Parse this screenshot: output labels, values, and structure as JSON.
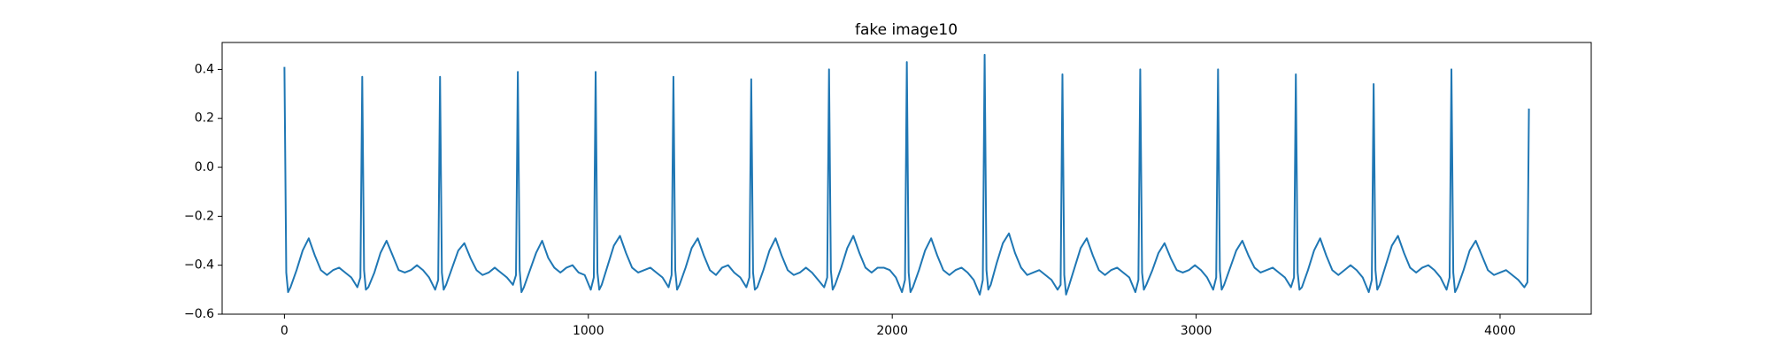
{
  "chart_data": {
    "type": "line",
    "title": "fake image10",
    "x": [
      0,
      6,
      12,
      20,
      40,
      60,
      80,
      100,
      120,
      140,
      160,
      180,
      200,
      220,
      240,
      250,
      256,
      262,
      268,
      276,
      296,
      316,
      336,
      356,
      376,
      396,
      416,
      436,
      456,
      476,
      496,
      506,
      512,
      518,
      524,
      532,
      552,
      572,
      592,
      612,
      632,
      652,
      672,
      692,
      712,
      732,
      752,
      762,
      768,
      774,
      780,
      788,
      808,
      828,
      848,
      868,
      888,
      908,
      928,
      948,
      968,
      988,
      1008,
      1018,
      1024,
      1030,
      1036,
      1044,
      1064,
      1084,
      1104,
      1124,
      1144,
      1164,
      1184,
      1204,
      1224,
      1244,
      1264,
      1274,
      1280,
      1286,
      1292,
      1300,
      1320,
      1340,
      1360,
      1380,
      1400,
      1420,
      1440,
      1460,
      1480,
      1500,
      1520,
      1530,
      1536,
      1542,
      1548,
      1556,
      1576,
      1596,
      1616,
      1636,
      1656,
      1676,
      1696,
      1716,
      1736,
      1756,
      1776,
      1786,
      1792,
      1798,
      1804,
      1812,
      1832,
      1852,
      1872,
      1892,
      1912,
      1932,
      1952,
      1972,
      1992,
      2012,
      2032,
      2042,
      2048,
      2054,
      2060,
      2068,
      2088,
      2108,
      2128,
      2148,
      2168,
      2188,
      2208,
      2228,
      2248,
      2268,
      2288,
      2298,
      2304,
      2310,
      2316,
      2324,
      2344,
      2364,
      2384,
      2404,
      2424,
      2444,
      2464,
      2484,
      2504,
      2524,
      2544,
      2554,
      2560,
      2566,
      2572,
      2580,
      2600,
      2620,
      2640,
      2660,
      2680,
      2700,
      2720,
      2740,
      2760,
      2780,
      2800,
      2810,
      2816,
      2822,
      2828,
      2836,
      2856,
      2876,
      2896,
      2916,
      2936,
      2956,
      2976,
      2996,
      3016,
      3036,
      3056,
      3066,
      3072,
      3078,
      3084,
      3092,
      3112,
      3132,
      3152,
      3172,
      3192,
      3212,
      3232,
      3252,
      3272,
      3292,
      3312,
      3322,
      3328,
      3334,
      3340,
      3348,
      3368,
      3388,
      3408,
      3428,
      3448,
      3468,
      3488,
      3508,
      3528,
      3548,
      3568,
      3578,
      3584,
      3590,
      3596,
      3604,
      3624,
      3644,
      3664,
      3684,
      3704,
      3724,
      3744,
      3764,
      3784,
      3804,
      3824,
      3834,
      3840,
      3846,
      3852,
      3860,
      3880,
      3900,
      3920,
      3940,
      3960,
      3980,
      4000,
      4020,
      4040,
      4060,
      4080,
      4090,
      4095
    ],
    "series": [
      {
        "color": "#1f77b4",
        "values": [
          0.41,
          -0.43,
          -0.51,
          -0.49,
          -0.42,
          -0.34,
          -0.29,
          -0.36,
          -0.42,
          -0.44,
          -0.42,
          -0.41,
          -0.43,
          -0.45,
          -0.49,
          -0.45,
          0.37,
          -0.42,
          -0.5,
          -0.49,
          -0.43,
          -0.35,
          -0.3,
          -0.36,
          -0.42,
          -0.43,
          -0.42,
          -0.4,
          -0.42,
          -0.45,
          -0.5,
          -0.46,
          0.37,
          -0.43,
          -0.5,
          -0.48,
          -0.41,
          -0.34,
          -0.31,
          -0.37,
          -0.42,
          -0.44,
          -0.43,
          -0.41,
          -0.43,
          -0.45,
          -0.48,
          -0.44,
          0.39,
          -0.42,
          -0.51,
          -0.49,
          -0.42,
          -0.35,
          -0.3,
          -0.37,
          -0.41,
          -0.43,
          -0.41,
          -0.4,
          -0.43,
          -0.44,
          -0.5,
          -0.45,
          0.39,
          -0.43,
          -0.5,
          -0.48,
          -0.4,
          -0.32,
          -0.28,
          -0.35,
          -0.41,
          -0.43,
          -0.42,
          -0.41,
          -0.43,
          -0.45,
          -0.49,
          -0.44,
          0.37,
          -0.42,
          -0.5,
          -0.48,
          -0.41,
          -0.33,
          -0.29,
          -0.36,
          -0.42,
          -0.44,
          -0.41,
          -0.4,
          -0.43,
          -0.45,
          -0.49,
          -0.45,
          0.36,
          -0.43,
          -0.5,
          -0.49,
          -0.42,
          -0.34,
          -0.29,
          -0.36,
          -0.42,
          -0.44,
          -0.43,
          -0.41,
          -0.43,
          -0.46,
          -0.49,
          -0.45,
          0.4,
          -0.42,
          -0.5,
          -0.48,
          -0.41,
          -0.33,
          -0.28,
          -0.35,
          -0.41,
          -0.43,
          -0.41,
          -0.41,
          -0.42,
          -0.45,
          -0.51,
          -0.46,
          0.43,
          -0.43,
          -0.51,
          -0.49,
          -0.42,
          -0.34,
          -0.29,
          -0.36,
          -0.42,
          -0.44,
          -0.42,
          -0.41,
          -0.43,
          -0.46,
          -0.52,
          -0.46,
          0.46,
          -0.42,
          -0.5,
          -0.48,
          -0.39,
          -0.31,
          -0.27,
          -0.35,
          -0.41,
          -0.44,
          -0.43,
          -0.42,
          -0.44,
          -0.46,
          -0.5,
          -0.48,
          0.38,
          -0.44,
          -0.52,
          -0.49,
          -0.41,
          -0.33,
          -0.29,
          -0.36,
          -0.42,
          -0.44,
          -0.42,
          -0.41,
          -0.43,
          -0.45,
          -0.51,
          -0.46,
          0.4,
          -0.43,
          -0.5,
          -0.48,
          -0.42,
          -0.35,
          -0.31,
          -0.37,
          -0.42,
          -0.43,
          -0.42,
          -0.4,
          -0.42,
          -0.45,
          -0.5,
          -0.45,
          0.4,
          -0.42,
          -0.5,
          -0.48,
          -0.41,
          -0.34,
          -0.3,
          -0.36,
          -0.41,
          -0.43,
          -0.42,
          -0.41,
          -0.43,
          -0.45,
          -0.49,
          -0.45,
          0.38,
          -0.43,
          -0.5,
          -0.49,
          -0.42,
          -0.34,
          -0.29,
          -0.36,
          -0.42,
          -0.44,
          -0.42,
          -0.4,
          -0.42,
          -0.45,
          -0.51,
          -0.46,
          0.34,
          -0.42,
          -0.5,
          -0.48,
          -0.4,
          -0.32,
          -0.28,
          -0.35,
          -0.41,
          -0.43,
          -0.41,
          -0.4,
          -0.42,
          -0.45,
          -0.5,
          -0.45,
          0.4,
          -0.43,
          -0.51,
          -0.49,
          -0.42,
          -0.34,
          -0.3,
          -0.36,
          -0.42,
          -0.44,
          -0.43,
          -0.42,
          -0.44,
          -0.46,
          -0.49,
          -0.47,
          0.24
        ]
      }
    ],
    "xlim": [
      -205,
      4300
    ],
    "ylim": [
      -0.6,
      0.51
    ],
    "xticks": [
      0,
      1000,
      2000,
      3000,
      4000
    ],
    "yticks": [
      {
        "value": -0.6,
        "label": "−0.6"
      },
      {
        "value": -0.4,
        "label": "−0.4"
      },
      {
        "value": -0.2,
        "label": "−0.2"
      },
      {
        "value": 0,
        "label": "0.0"
      },
      0.2,
      0.4
    ],
    "grid": false
  }
}
